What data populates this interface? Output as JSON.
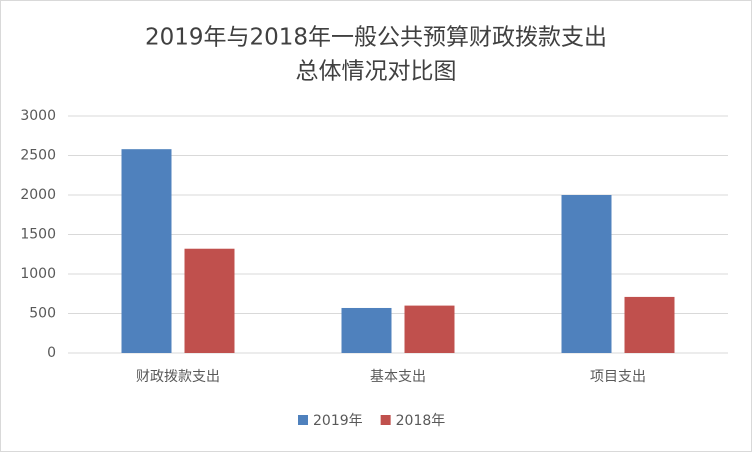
{
  "chart_data": {
    "type": "bar",
    "title": [
      "2019年与2018年一般公共预算财政拨款支出",
      "总体情况对比图"
    ],
    "categories": [
      "财政拨款支出",
      "基本支出",
      "项目支出"
    ],
    "series": [
      {
        "name": "2019年",
        "color": "#4f81bd",
        "values": [
          2580,
          570,
          2000
        ]
      },
      {
        "name": "2018年",
        "color": "#c0504d",
        "values": [
          1320,
          600,
          710
        ]
      }
    ],
    "ylim": [
      0,
      3000
    ],
    "yticks": [
      0,
      500,
      1000,
      1500,
      2000,
      2500,
      3000
    ],
    "grid": true,
    "legend": "bottom"
  }
}
